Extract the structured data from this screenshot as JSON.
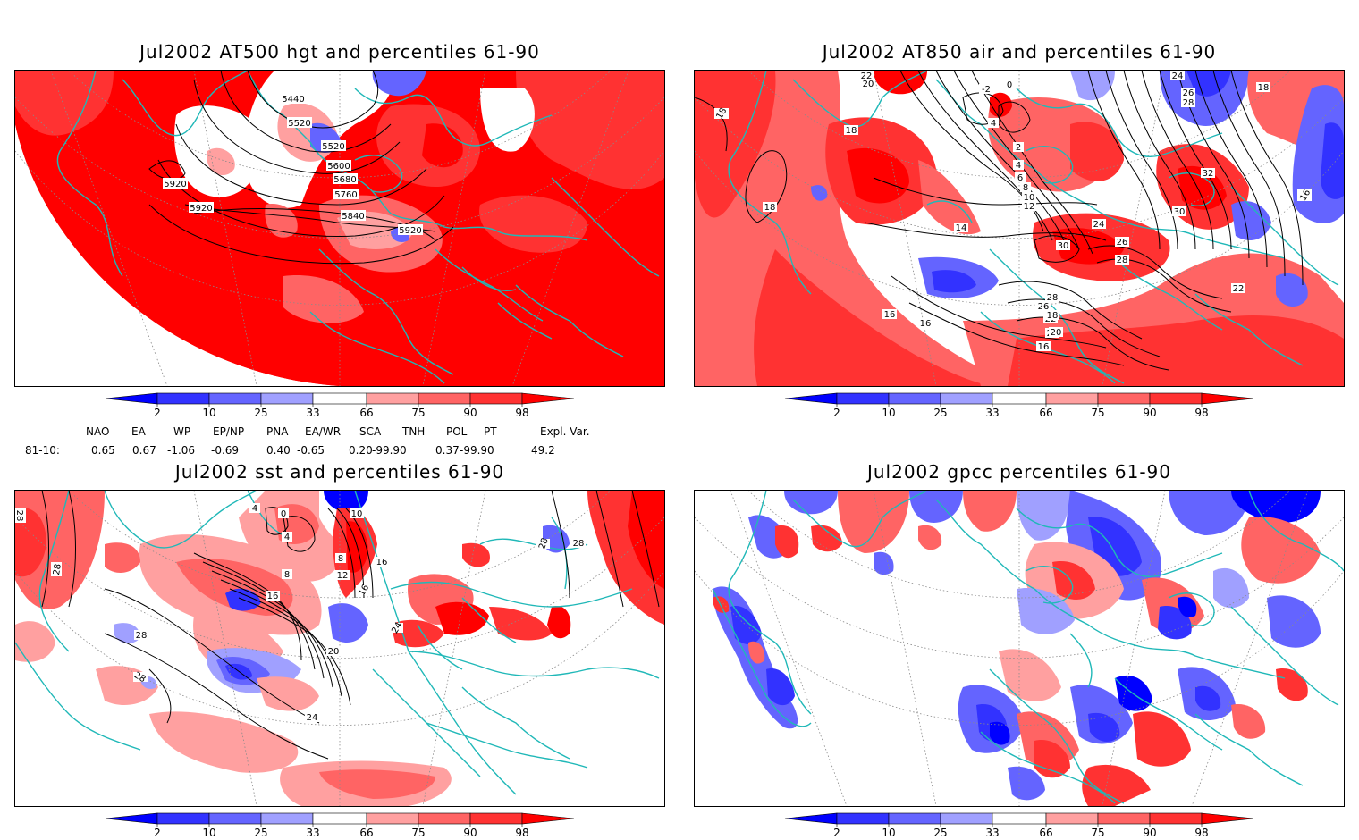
{
  "panels": [
    {
      "title": "Jul2002 AT500 hgt and percentiles 61-90",
      "contour_labels": [
        "5440",
        "5520",
        "5520",
        "5600",
        "5680",
        "5760",
        "5840",
        "5920",
        "5920",
        "5920"
      ]
    },
    {
      "title": "Jul2002 AT850 air and percentiles 61-90",
      "contour_labels": [
        "22",
        "20",
        "18",
        "18",
        "18",
        "14",
        "12",
        "10",
        "8",
        "6",
        "4",
        "2",
        "0",
        "-2",
        "4",
        "16",
        "16",
        "16",
        "18",
        "20",
        "22",
        "24",
        "26",
        "28",
        "30",
        "32",
        "30",
        "28",
        "26",
        "24",
        "26",
        "28",
        "20",
        "22",
        "18",
        "16"
      ]
    },
    {
      "title": "Jul2002 sst and percentiles 61-90",
      "contour_labels": [
        "28",
        "28",
        "28",
        "28",
        "24",
        "20",
        "16",
        "12",
        "8",
        "8",
        "4",
        "4",
        "0",
        "10",
        "16",
        "16",
        "24",
        "28",
        "28"
      ]
    },
    {
      "title": "Jul2002 gpcc percentiles 61-90",
      "contour_labels": []
    }
  ],
  "colorbar": {
    "labels": [
      "2",
      "10",
      "25",
      "33",
      "66",
      "75",
      "90",
      "98"
    ],
    "colors": {
      "below_2": "#0000ff",
      "2_10": "#3232ff",
      "10_25": "#6464ff",
      "25_33": "#a0a0ff",
      "33_66": "#ffffff",
      "66_75": "#ffa0a0",
      "75_90": "#ff6464",
      "90_98": "#ff3232",
      "above_98": "#ff0000"
    }
  },
  "teleconnections": {
    "headers": [
      "NAO",
      "EA",
      "WP",
      "EP/NP",
      "PNA",
      "EA/WR",
      "SCA",
      "TNH",
      "POL",
      "PT",
      "Expl. Var."
    ],
    "row_label": "81-10:",
    "values": [
      "0.65",
      "0.67",
      "-1.06",
      "-0.69",
      "0.40",
      "-0.65",
      "0.20",
      "-99.90",
      "0.37",
      "-99.90",
      "49.2"
    ]
  },
  "style": {
    "coast_color": "#20b8b8",
    "contour_color": "#000000",
    "grid_color": "#8a8a8a"
  }
}
